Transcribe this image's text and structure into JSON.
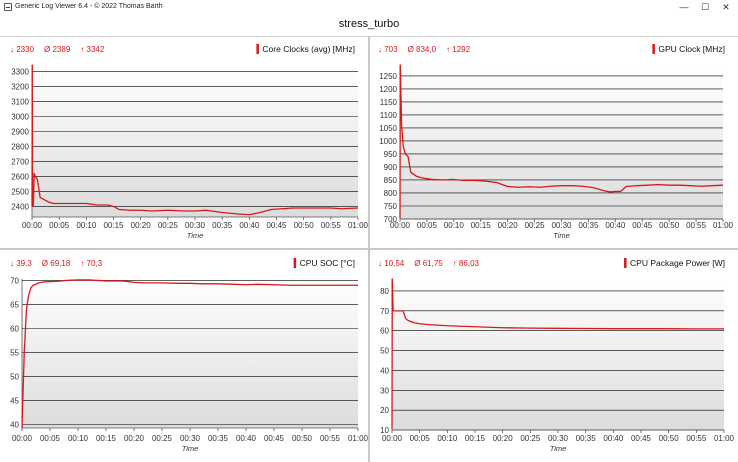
{
  "window": {
    "app_title": "Generic Log Viewer 6.4 - © 2022 Thomas Barth",
    "minimize": "—",
    "maximize": "☐",
    "close": "✕"
  },
  "page_title": "stress_turbo",
  "colors": {
    "line": "#d7191c",
    "plot_bg_top": "#ffffff",
    "plot_bg_bottom": "#dcdcdc",
    "grid": "#000000"
  },
  "chart_data": [
    {
      "type": "line",
      "title": "Core Clocks (avg) [MHz]",
      "stats": {
        "min": "↓ 2330",
        "avg": "Ø 2389",
        "max": "↑ 3342"
      },
      "xlabel": "Time",
      "x_ticks": [
        "00:00",
        "00:05",
        "00:10",
        "00:15",
        "00:20",
        "00:25",
        "00:30",
        "00:35",
        "00:40",
        "00:45",
        "00:50",
        "00:55",
        "01:00"
      ],
      "y_ticks": [
        2400,
        2500,
        2600,
        2700,
        2800,
        2900,
        3000,
        3100,
        3200,
        3300
      ],
      "ylim": [
        2330,
        3342
      ],
      "series": [
        {
          "name": "Core Clocks (avg) [MHz]",
          "x": [
            0,
            0.05,
            0.1,
            0.25,
            0.4,
            0.6,
            1,
            1.5,
            2,
            3,
            4,
            6,
            8,
            10,
            12,
            14,
            15,
            16,
            18,
            20,
            22,
            25,
            28,
            30,
            32,
            35,
            38,
            40,
            42,
            44,
            46,
            48,
            50,
            52,
            55,
            57,
            60
          ],
          "y": [
            2400,
            3342,
            2470,
            2400,
            2620,
            2600,
            2580,
            2460,
            2450,
            2430,
            2420,
            2420,
            2420,
            2420,
            2410,
            2410,
            2400,
            2380,
            2375,
            2375,
            2370,
            2375,
            2370,
            2370,
            2375,
            2360,
            2350,
            2345,
            2360,
            2380,
            2385,
            2390,
            2390,
            2390,
            2390,
            2385,
            2390
          ]
        }
      ]
    },
    {
      "type": "line",
      "title": "GPU Clock [MHz]",
      "stats": {
        "min": "↓ 703",
        "avg": "Ø 834,0",
        "max": "↑ 1292"
      },
      "xlabel": "Time",
      "x_ticks": [
        "00:00",
        "00:05",
        "00:10",
        "00:15",
        "00:20",
        "00:25",
        "00:30",
        "00:35",
        "00:40",
        "00:45",
        "00:50",
        "00:55",
        "01:00"
      ],
      "y_ticks": [
        700,
        750,
        800,
        850,
        900,
        950,
        1000,
        1050,
        1100,
        1150,
        1200,
        1250
      ],
      "ylim": [
        700,
        1292
      ],
      "series": [
        {
          "name": "GPU Clock [MHz]",
          "x": [
            0,
            0.05,
            0.3,
            0.6,
            1,
            1.5,
            2,
            3,
            4,
            5,
            6,
            8,
            10,
            12,
            14,
            16,
            18,
            20,
            22,
            24,
            26,
            28,
            30,
            32,
            34,
            36,
            38,
            39,
            40,
            41,
            42,
            44,
            46,
            48,
            50,
            52,
            54,
            56,
            58,
            60
          ],
          "y": [
            703,
            1292,
            1060,
            980,
            950,
            940,
            880,
            865,
            858,
            855,
            852,
            850,
            852,
            848,
            848,
            845,
            840,
            825,
            822,
            824,
            822,
            826,
            828,
            828,
            826,
            820,
            808,
            804,
            806,
            806,
            825,
            828,
            830,
            832,
            830,
            830,
            828,
            826,
            828,
            830
          ]
        }
      ]
    },
    {
      "type": "line",
      "title": "CPU SOC [°C]",
      "stats": {
        "min": "↓ 39,3",
        "avg": "Ø 69,18",
        "max": "↑ 70,3"
      },
      "xlabel": "Time",
      "x_ticks": [
        "00:00",
        "00:05",
        "00:10",
        "00:15",
        "00:20",
        "00:25",
        "00:30",
        "00:35",
        "00:40",
        "00:45",
        "00:50",
        "00:55",
        "01:00"
      ],
      "y_ticks": [
        40,
        45,
        50,
        55,
        60,
        65,
        70
      ],
      "ylim": [
        39.3,
        70.3
      ],
      "series": [
        {
          "name": "CPU SOC [°C]",
          "x": [
            0,
            0.4,
            0.8,
            1.2,
            1.6,
            2,
            3,
            4,
            6,
            8,
            10,
            12,
            15,
            18,
            20,
            22,
            25,
            28,
            30,
            32,
            35,
            38,
            40,
            42,
            45,
            48,
            50,
            52,
            55,
            58,
            60
          ],
          "y": [
            39.3,
            55,
            64,
            67,
            68.5,
            69,
            69.5,
            69.7,
            69.8,
            70,
            70.1,
            70.1,
            69.9,
            69.9,
            69.6,
            69.5,
            69.5,
            69.4,
            69.4,
            69.3,
            69.3,
            69.2,
            69.1,
            69.2,
            69.1,
            69,
            69,
            69,
            69,
            69,
            69
          ]
        }
      ]
    },
    {
      "type": "line",
      "title": "CPU Package Power [W]",
      "stats": {
        "min": "↓ 10,54",
        "avg": "Ø 61,75",
        "max": "↑ 86,03"
      },
      "xlabel": "Time",
      "x_ticks": [
        "00:00",
        "00:05",
        "00:10",
        "00:15",
        "00:20",
        "00:25",
        "00:30",
        "00:35",
        "00:40",
        "00:45",
        "00:50",
        "00:55",
        "01:00"
      ],
      "y_ticks": [
        10,
        20,
        30,
        40,
        50,
        60,
        70,
        80
      ],
      "ylim": [
        10,
        86.03
      ],
      "series": [
        {
          "name": "CPU Package Power [W]",
          "x": [
            0,
            0.05,
            0.2,
            0.5,
            1,
            1.5,
            2,
            2.5,
            3,
            4,
            5,
            7,
            10,
            15,
            20,
            25,
            30,
            35,
            40,
            45,
            50,
            55,
            60
          ],
          "y": [
            10.54,
            86.03,
            70,
            70,
            70,
            70,
            70,
            66,
            65,
            64,
            63.5,
            63,
            62.5,
            62,
            61.5,
            61.3,
            61.2,
            61.1,
            61,
            61,
            61,
            60.9,
            60.9
          ]
        }
      ]
    }
  ]
}
